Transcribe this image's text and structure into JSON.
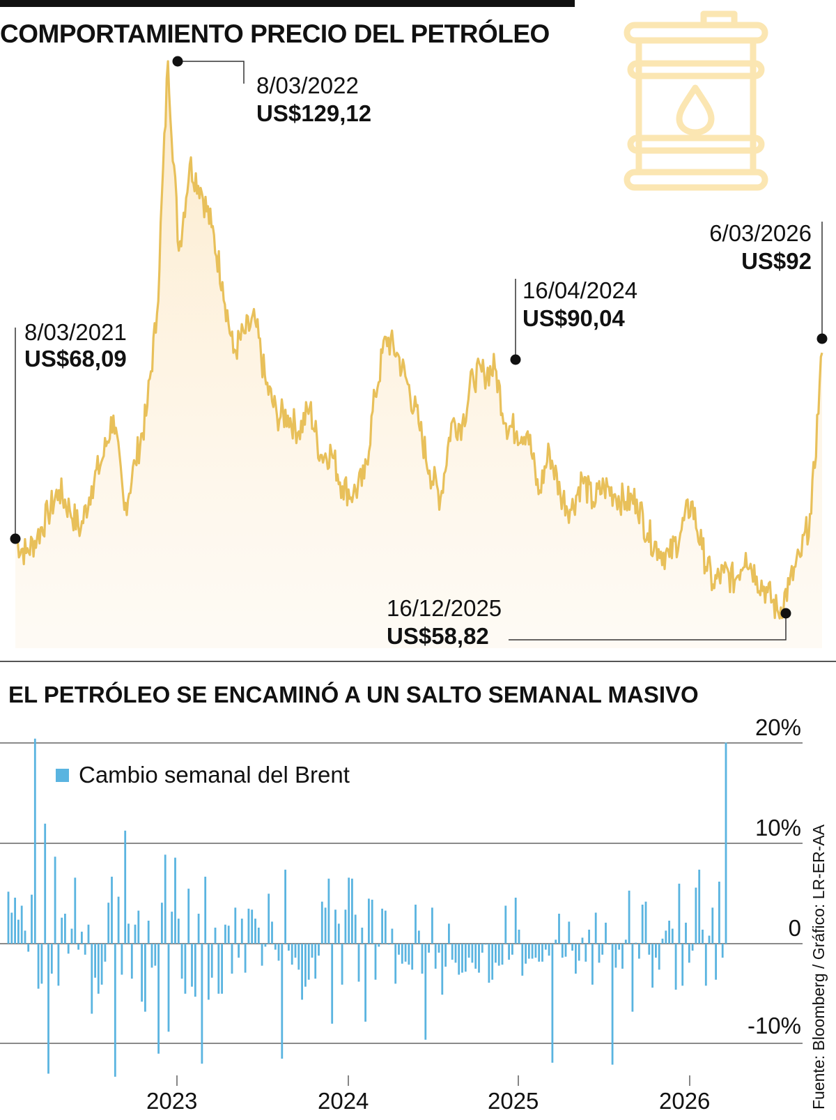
{
  "title": "COMPORTAMIENTO PRECIO DEL PETRÓLEO",
  "subtitle": "EL PETRÓLEO SE ENCAMINÓ A UN SALTO SEMANAL MASIVO",
  "source": "Fuente: Bloomberg / Gráfico: LR-ER-AA",
  "barrel_icon": "oil-barrel-icon",
  "colors": {
    "price_line": "#e8c05a",
    "price_fill": "#fdf3e2",
    "bars": "#5ab4e0",
    "icon": "#fbe6b2",
    "text": "#111111",
    "grid": "#444444"
  },
  "annotations": [
    {
      "date": "8/03/2021",
      "value": "US$68,09"
    },
    {
      "date": "8/03/2022",
      "value": "US$129,12"
    },
    {
      "date": "16/04/2024",
      "value": "US$90,04"
    },
    {
      "date": "16/12/2025",
      "value": "US$58,82"
    },
    {
      "date": "6/03/2026",
      "value": "US$92"
    }
  ],
  "chart_data": [
    {
      "type": "area",
      "series": [
        {
          "values_per_month_from_2021_03": [
            68.09,
            66.5,
            68.5,
            71.5,
            74.5,
            72,
            69.5,
            75,
            78.5,
            84,
            72,
            78,
            84,
            97,
            129.12,
            105,
            116,
            113,
            108,
            101,
            92,
            94.5,
            96,
            88,
            84,
            84,
            82,
            85,
            79,
            79.3,
            75,
            74,
            76,
            86.5,
            94,
            92,
            88,
            83,
            77,
            73.5,
            83,
            83,
            89,
            89.4,
            90.04,
            83,
            82,
            82,
            74,
            79.5,
            74,
            72,
            76,
            73,
            75,
            74,
            73,
            73.3,
            69,
            67,
            66,
            69,
            73,
            67,
            62.5,
            64,
            63,
            66.5,
            63.5,
            61.5,
            58.82,
            62.5,
            66,
            71.5,
            92
          ]
        }
      ],
      "ylim": [
        55,
        132
      ]
    },
    {
      "type": "bar",
      "legend": [
        "Cambio semanal del Brent"
      ],
      "series": [
        {
          "name": "Cambio semanal del Brent",
          "values": [
            5.2,
            3.1,
            4.6,
            2.4,
            3.8,
            1.3,
            -0.8,
            4.9,
            20.5,
            -4.5,
            -4,
            12,
            -13,
            -3,
            8.7,
            -4.2,
            2.6,
            3,
            -1,
            1.5,
            6.6,
            -0.6,
            1.2,
            -1.1,
            1.9,
            -7,
            -3.4,
            -5,
            -4.1,
            -1.8,
            4.1,
            6.7,
            -13.3,
            4.7,
            -3.1,
            11.3,
            2,
            -3.5,
            1.9,
            3.3,
            -5.8,
            -6.8,
            2.3,
            -2.4,
            -2.2,
            -11,
            4.1,
            8.9,
            -8.8,
            3.2,
            8.6,
            2.5,
            -3.5,
            -5,
            5.5,
            -4.3,
            -5.3,
            3,
            -12,
            6.7,
            -5.6,
            -3.4,
            1.6,
            -5,
            -5,
            1.9,
            1.8,
            -3,
            3.6,
            -1.4,
            2.5,
            -2.9,
            3.5,
            3.4,
            2.5,
            1.6,
            -2.2,
            -0.3,
            5,
            2.2,
            -0.6,
            -1.7,
            -11.5,
            7.4,
            -0.7,
            -2.1,
            -1.4,
            -2.6,
            -5.6,
            -4.3,
            -3.6,
            -1.4,
            -3.5,
            -1.2,
            4.2,
            3.6,
            6.5,
            -8,
            3.4,
            2,
            -4.1,
            3.4,
            6.6,
            6.5,
            2.9,
            -3.8,
            1.6,
            -7.8,
            4.5,
            4.4,
            -3.6,
            -0.3,
            3.5,
            3.3,
            -0.1,
            1.5,
            -4,
            -1.1,
            -2,
            -1.8,
            -2.1,
            -2.6,
            3.9,
            1.3,
            -3,
            -9.6,
            -0.9,
            3.6,
            -2.5,
            -0.9,
            -5.1,
            -2.3,
            2,
            -1.6,
            -1.9,
            -3.1,
            -2.9,
            -2.8,
            -1.4,
            -1.9,
            -2.5,
            -2.9,
            -0.9,
            -0.1,
            -3.9,
            -3.6,
            -1.9,
            -2.2,
            -2.1,
            3.8,
            -1.6,
            -1.1,
            4.6,
            1.4,
            -3.2,
            -2,
            -1.5,
            -1.5,
            -1.4,
            -1.8,
            -1.8,
            -0.6,
            -1.2,
            -11.9,
            0.4,
            3,
            -1.4,
            -1.3,
            2.2,
            -0.7,
            -3,
            -1.7,
            0.6,
            -1.8,
            1.4,
            -4.1,
            3.1,
            -1.9,
            -1.1,
            2.1,
            -0.1,
            -12.1,
            -2.4,
            -0.6,
            -2.5,
            0.4,
            5.3,
            -6.8,
            0.1,
            -1.5,
            3.9,
            4.2,
            -1.1,
            -4.4,
            -1.4,
            -2.6,
            0.5,
            1.3,
            2.3,
            1.5,
            -4.6,
            6,
            -4.2,
            2.1,
            -1.9,
            -0.7,
            5.6,
            7.4,
            1.4,
            -4.2,
            0.8,
            3.6,
            -3.6,
            6.2,
            -1.4,
            20.1
          ]
        }
      ],
      "y_ticks": [
        "20%",
        "10%",
        "0",
        "-10%"
      ],
      "x_ticks": [
        "2023",
        "2024",
        "2025",
        "2026"
      ],
      "ylim": [
        -14,
        21
      ]
    }
  ]
}
